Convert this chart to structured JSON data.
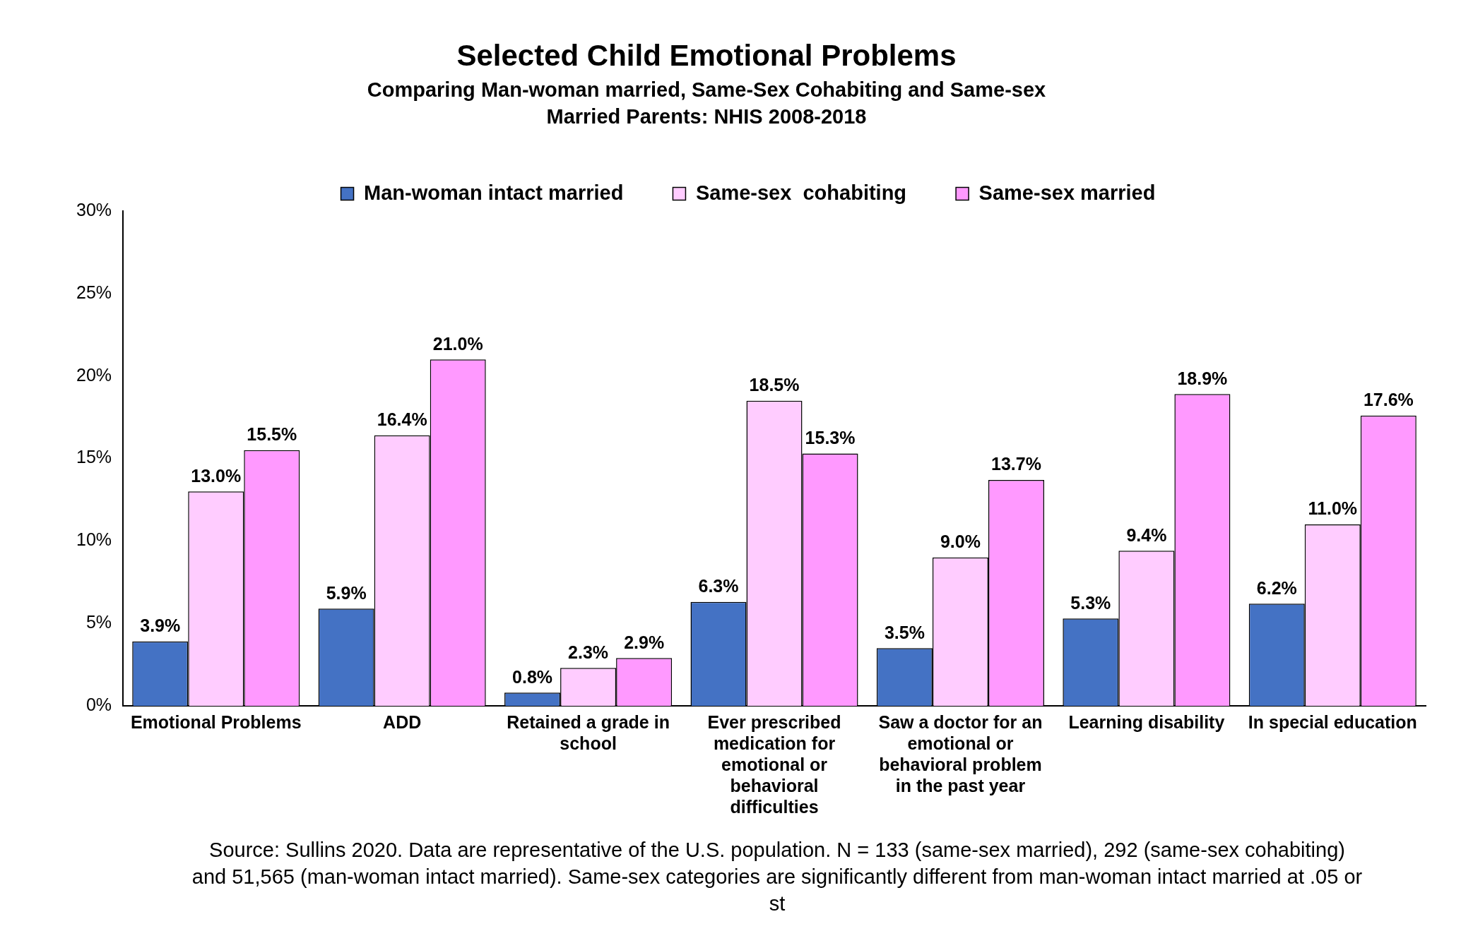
{
  "chart_data": {
    "type": "bar",
    "title": "Selected Child Emotional Problems",
    "subtitle": "Comparing Man-woman married, Same-Sex Cohabiting and Same-sex Married Parents: NHIS 2008-2018",
    "categories": [
      "Emotional Problems",
      "ADD",
      "Retained a grade in school",
      "Ever prescribed medication for emotional or behavioral difficulties",
      "Saw a doctor for an emotional or behavioral problem in the past year",
      "Learning disability",
      "In special education"
    ],
    "series": [
      {
        "name": "Man-woman intact married",
        "color": "#4472c4",
        "values": [
          3.9,
          5.9,
          0.8,
          6.3,
          3.5,
          5.3,
          6.2
        ],
        "value_labels": [
          "3.9%",
          "5.9%",
          "0.8%",
          "6.3%",
          "3.5%",
          "5.3%",
          "6.2%"
        ]
      },
      {
        "name": "Same-sex  cohabiting",
        "color": "#ffccff",
        "values": [
          13.0,
          16.4,
          2.3,
          18.5,
          9.0,
          9.4,
          11.0
        ],
        "value_labels": [
          "13.0%",
          "16.4%",
          "2.3%",
          "18.5%",
          "9.0%",
          "9.4%",
          "11.0%"
        ]
      },
      {
        "name": "Same-sex married",
        "color": "#ff99ff",
        "values": [
          15.5,
          21.0,
          2.9,
          15.3,
          13.7,
          18.9,
          17.6
        ],
        "value_labels": [
          "15.5%",
          "21.0%",
          "2.9%",
          "15.3%",
          "13.7%",
          "18.9%",
          "17.6%"
        ]
      }
    ],
    "ylim": [
      0,
      30
    ],
    "yticks": [
      {
        "value": 0,
        "label": "0%"
      },
      {
        "value": 5,
        "label": "5%"
      },
      {
        "value": 10,
        "label": "10%"
      },
      {
        "value": 15,
        "label": "15%"
      },
      {
        "value": 20,
        "label": "20%"
      },
      {
        "value": 25,
        "label": "25%"
      },
      {
        "value": 30,
        "label": "30%"
      }
    ],
    "grid": false,
    "legend": "top",
    "annotations": [
      "Source: Sullins 2020.  Data are representative of the U.S. population. N = 133 (same-sex married), 292 (same-sex cohabiting) and 51,565 (man-woman intact married).  Same-sex categories are significantly different from man-woman intact married at .05 or st"
    ]
  }
}
